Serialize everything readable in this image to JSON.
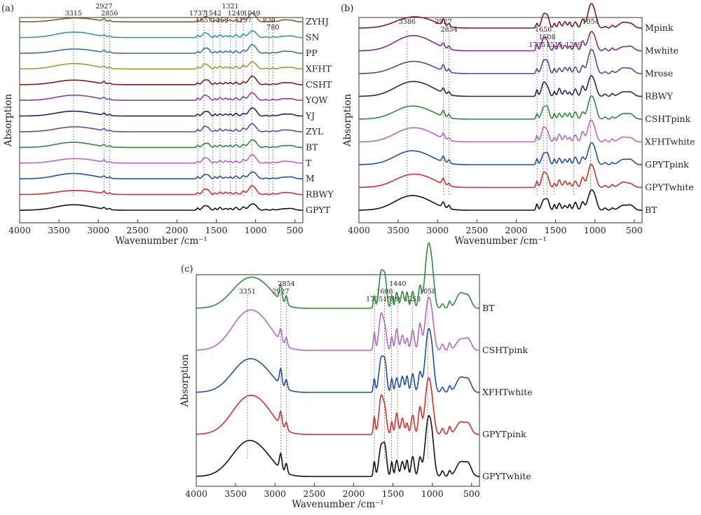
{
  "chart_data": [
    {
      "type": "line",
      "panel_label": "(a)",
      "xlabel": "Wavenumber /cm⁻¹",
      "ylabel": "Absorption",
      "xlim": [
        4000,
        400
      ],
      "x_ticks": [
        4000,
        3500,
        3000,
        2500,
        2000,
        1500,
        1000,
        500
      ],
      "peak_markers": [
        3315,
        2927,
        2856,
        1737,
        1657,
        1542,
        1452,
        1321,
        1249,
        1157,
        1049,
        830,
        780
      ],
      "peak_labels": [
        {
          "text": "3315",
          "x": 3315,
          "row": 2
        },
        {
          "text": "2927",
          "x": 2927,
          "row": 1
        },
        {
          "text": "2856",
          "x": 2856,
          "row": 2
        },
        {
          "text": "1737",
          "x": 1737,
          "row": 2
        },
        {
          "text": "1542",
          "x": 1542,
          "row": 2
        },
        {
          "text": "1321",
          "x": 1321,
          "row": 1
        },
        {
          "text": "1657",
          "x": 1657,
          "row": 3
        },
        {
          "text": "1452",
          "x": 1452,
          "row": 3
        },
        {
          "text": "1249",
          "x": 1249,
          "row": 2
        },
        {
          "text": "1049",
          "x": 1049,
          "row": 2
        },
        {
          "text": "1157",
          "x": 1157,
          "row": 3
        },
        {
          "text": "830",
          "x": 830,
          "row": 3
        },
        {
          "text": "780",
          "x": 780,
          "row": 4
        }
      ],
      "series": [
        {
          "name": "ZYHJ",
          "color": "#8b5a2b"
        },
        {
          "name": "SN",
          "color": "#2e9aa8"
        },
        {
          "name": "PP",
          "color": "#3f6f9a"
        },
        {
          "name": "XFHT",
          "color": "#9a9a3a"
        },
        {
          "name": "CSHT",
          "color": "#7a1c1c"
        },
        {
          "name": "YQW",
          "color": "#8a3fa0"
        },
        {
          "name": "YJ",
          "color": "#1d2a5a"
        },
        {
          "name": "ZYL",
          "color": "#5050a8"
        },
        {
          "name": "BT",
          "color": "#2f8a3c"
        },
        {
          "name": "T",
          "color": "#b06ac0"
        },
        {
          "name": "M",
          "color": "#2050a0"
        },
        {
          "name": "RBWY",
          "color": "#d03030"
        },
        {
          "name": "GPYT",
          "color": "#111111"
        }
      ]
    },
    {
      "type": "line",
      "panel_label": "(b)",
      "xlabel": "Wavenumber /cm⁻¹",
      "ylabel": "Absorption",
      "xlim": [
        4000,
        400
      ],
      "x_ticks": [
        4000,
        3500,
        3000,
        2500,
        2000,
        1500,
        1000,
        500
      ],
      "peak_markers": [
        3386,
        2927,
        2854,
        1735,
        1656,
        1608,
        1515,
        1269,
        1054
      ],
      "peak_labels": [
        {
          "text": "3386",
          "x": 3386,
          "row": 1
        },
        {
          "text": "2927",
          "x": 2927,
          "row": 1
        },
        {
          "text": "2854",
          "x": 2854,
          "row": 2
        },
        {
          "text": "1656",
          "x": 1656,
          "row": 2
        },
        {
          "text": "1608",
          "x": 1608,
          "row": 3
        },
        {
          "text": "1735",
          "x": 1735,
          "row": 4
        },
        {
          "text": "1515",
          "x": 1515,
          "row": 4
        },
        {
          "text": "1269",
          "x": 1269,
          "row": 4
        },
        {
          "text": "1054",
          "x": 1054,
          "row": 1
        }
      ],
      "series": [
        {
          "name": "Mpink",
          "color": "#7a1c1c"
        },
        {
          "name": "Mwhite",
          "color": "#7a2f8a"
        },
        {
          "name": "Mrose",
          "color": "#4a4aa0"
        },
        {
          "name": "RBWY",
          "color": "#1d2a5a"
        },
        {
          "name": "CSHTpink",
          "color": "#2f8a3c"
        },
        {
          "name": "XFHTwhite",
          "color": "#b06ac0"
        },
        {
          "name": "GPYTpink",
          "color": "#2050a0"
        },
        {
          "name": "GPYTwhite",
          "color": "#d03030"
        },
        {
          "name": "BT",
          "color": "#111111"
        }
      ]
    },
    {
      "type": "line",
      "panel_label": "(c)",
      "xlabel": "Wavenumber /cm⁻¹",
      "ylabel": "Absorption",
      "xlim": [
        4000,
        400
      ],
      "x_ticks": [
        4000,
        3500,
        3000,
        2500,
        2000,
        1500,
        1000,
        500
      ],
      "peak_markers": [
        3351,
        2927,
        2854,
        1735,
        1608,
        1519,
        1440,
        1253,
        1058
      ],
      "peak_labels": [
        {
          "text": "3351",
          "x": 3351,
          "row": 2
        },
        {
          "text": "2927",
          "x": 2927,
          "row": 2
        },
        {
          "text": "2854",
          "x": 2854,
          "row": 1
        },
        {
          "text": "1735",
          "x": 1735,
          "row": 3
        },
        {
          "text": "1608",
          "x": 1608,
          "row": 2
        },
        {
          "text": "1519",
          "x": 1519,
          "row": 3
        },
        {
          "text": "1440",
          "x": 1440,
          "row": 1
        },
        {
          "text": "1253",
          "x": 1253,
          "row": 3
        },
        {
          "text": "1058",
          "x": 1058,
          "row": 2
        }
      ],
      "series": [
        {
          "name": "BT",
          "color": "#2f8a3c"
        },
        {
          "name": "CSHTpink",
          "color": "#b06ac0"
        },
        {
          "name": "XFHTwhite",
          "color": "#2050a0"
        },
        {
          "name": "GPYTpink",
          "color": "#d03030"
        },
        {
          "name": "GPYTwhite",
          "color": "#111111"
        }
      ]
    }
  ]
}
